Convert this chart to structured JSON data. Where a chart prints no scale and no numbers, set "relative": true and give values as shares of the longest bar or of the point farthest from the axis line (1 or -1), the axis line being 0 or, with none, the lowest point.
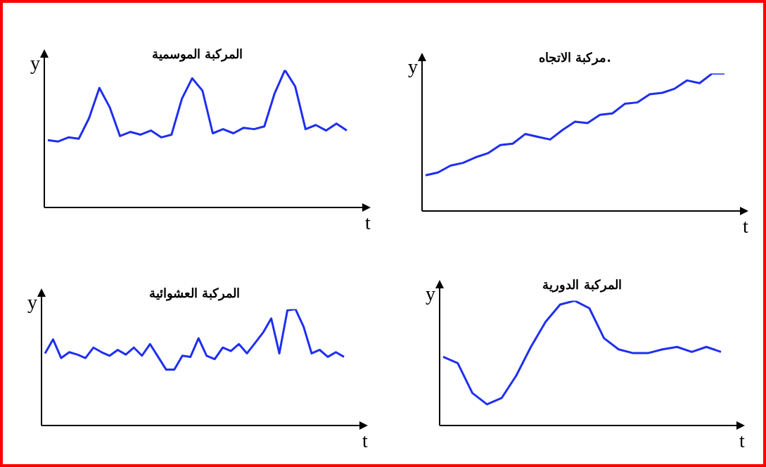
{
  "chart_data": [
    {
      "type": "line",
      "title": "المركبة الموسمية",
      "xlabel": "t",
      "ylabel": "y",
      "relative": true,
      "color": "#1f2ef0",
      "categories": [
        null,
        null,
        null,
        null,
        null,
        null,
        null,
        null,
        null,
        null,
        null,
        null,
        null,
        null,
        null,
        null,
        null,
        null,
        null,
        null,
        null,
        null,
        null,
        null,
        null,
        null,
        null,
        null,
        null,
        null
      ],
      "values": [
        0.49,
        0.48,
        0.51,
        0.5,
        0.65,
        0.87,
        0.73,
        0.52,
        0.55,
        0.53,
        0.56,
        0.51,
        0.53,
        0.79,
        0.94,
        0.85,
        0.54,
        0.57,
        0.54,
        0.58,
        0.57,
        0.59,
        0.83,
        1,
        0.88,
        0.57,
        0.6,
        0.56,
        0.61,
        0.56
      ]
    },
    {
      "type": "line",
      "title": "مركبة الاتجاه.",
      "xlabel": "t",
      "ylabel": "y",
      "relative": true,
      "color": "#1f2ef0",
      "categories": [
        null,
        null,
        null,
        null,
        null,
        null,
        null,
        null,
        null,
        null,
        null,
        null,
        null,
        null,
        null,
        null,
        null,
        null,
        null,
        null,
        null,
        null,
        null,
        null,
        null
      ],
      "values": [
        0.26,
        0.28,
        0.33,
        0.35,
        0.39,
        0.42,
        0.48,
        0.49,
        0.56,
        0.54,
        0.52,
        0.59,
        0.65,
        0.64,
        0.7,
        0.71,
        0.78,
        0.79,
        0.85,
        0.86,
        0.89,
        0.95,
        0.93,
        1,
        1
      ]
    },
    {
      "type": "line",
      "title": "المركبة العشوائية",
      "xlabel": "t",
      "ylabel": "y",
      "relative": true,
      "color": "#1f2ef0",
      "categories": [
        null,
        null,
        null,
        null,
        null,
        null,
        null,
        null,
        null,
        null,
        null,
        null,
        null,
        null,
        null,
        null,
        null,
        null,
        null,
        null,
        null,
        null,
        null,
        null,
        null,
        null,
        null,
        null,
        null,
        null,
        null,
        null,
        null,
        null,
        null,
        null,
        null,
        null
      ],
      "values": [
        0.62,
        0.74,
        0.58,
        0.63,
        0.61,
        0.58,
        0.67,
        0.63,
        0.6,
        0.65,
        0.61,
        0.67,
        0.6,
        0.7,
        0.59,
        0.48,
        0.48,
        0.6,
        0.59,
        0.75,
        0.6,
        0.57,
        0.67,
        0.64,
        0.7,
        0.62,
        0.71,
        0.8,
        0.92,
        0.62,
        0.99,
        1,
        0.85,
        0.62,
        0.65,
        0.59,
        0.63,
        0.59
      ]
    },
    {
      "type": "line",
      "title": "المركبة الدورية",
      "xlabel": "t",
      "ylabel": "y",
      "relative": true,
      "color": "#1f2ef0",
      "categories": [
        null,
        null,
        null,
        null,
        null,
        null,
        null,
        null,
        null,
        null,
        null,
        null,
        null,
        null,
        null,
        null,
        null,
        null,
        null,
        null
      ],
      "values": [
        0.55,
        0.5,
        0.26,
        0.17,
        0.22,
        0.4,
        0.63,
        0.83,
        0.97,
        1,
        0.94,
        0.7,
        0.61,
        0.58,
        0.58,
        0.61,
        0.63,
        0.59,
        0.63,
        0.59
      ]
    }
  ]
}
